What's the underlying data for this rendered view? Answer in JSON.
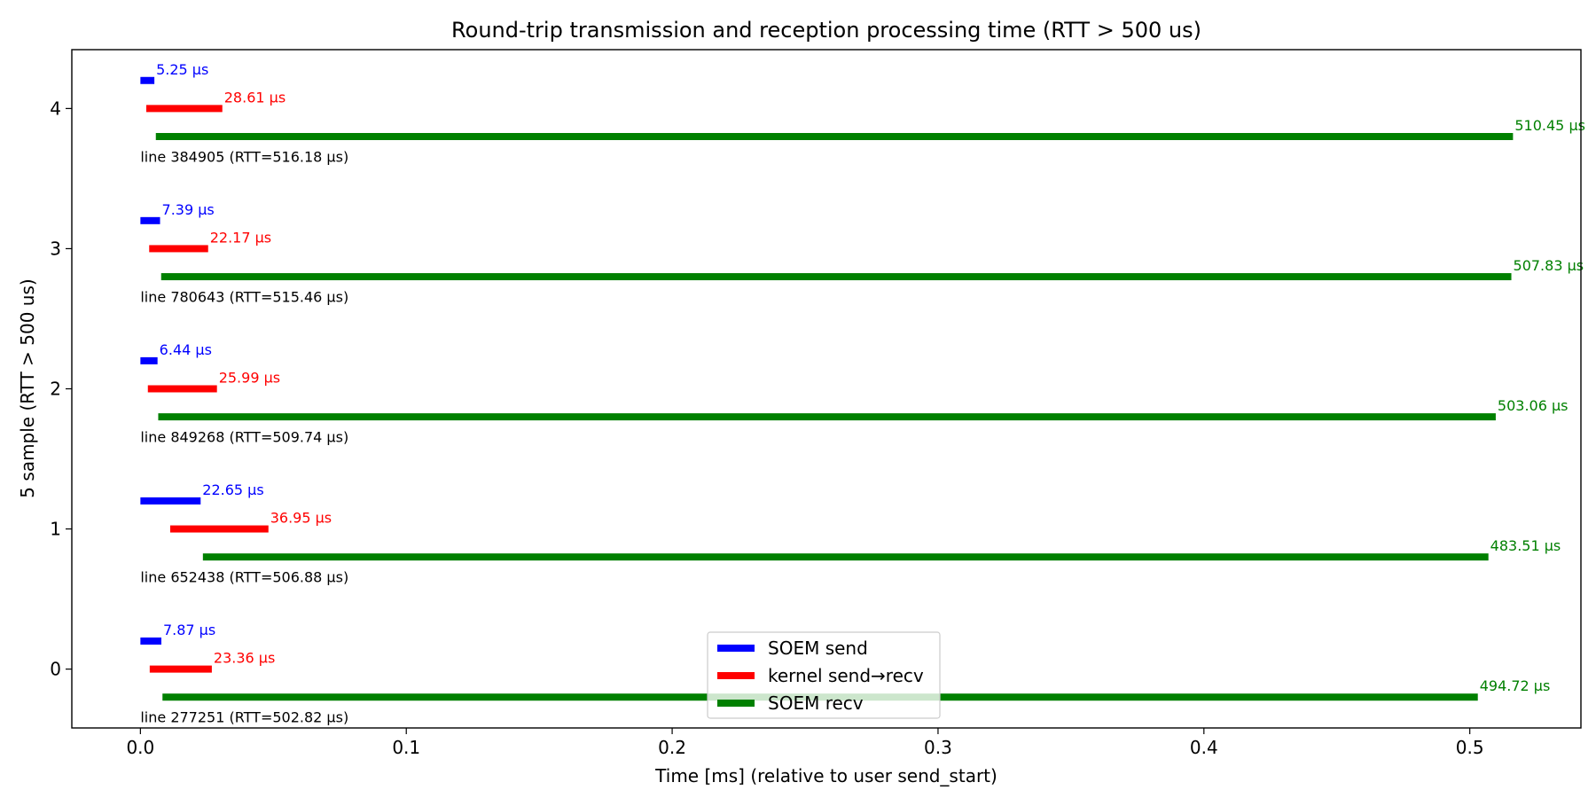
{
  "chart_data": {
    "type": "bar",
    "title": "Round-trip transmission and reception processing time (RTT > 500 us)",
    "xlabel": "Time [ms] (relative to user send_start)",
    "ylabel": "5 sample (RTT > 500 us)",
    "xlim": [
      -0.0258,
      0.5418
    ],
    "ylim": [
      -0.42,
      4.42
    ],
    "xticks": [
      0.0,
      0.1,
      0.2,
      0.3,
      0.4,
      0.5
    ],
    "xtick_labels": [
      "0.0",
      "0.1",
      "0.2",
      "0.3",
      "0.4",
      "0.5"
    ],
    "yticks": [
      0,
      1,
      2,
      3,
      4
    ],
    "ytick_labels": [
      "0",
      "1",
      "2",
      "3",
      "4"
    ],
    "grid": false,
    "legend_position": "bottom-center",
    "series": [
      {
        "name": "SOEM send",
        "color": "#0000ff",
        "y_offset": 0.2
      },
      {
        "name": "kernel send→recv",
        "color": "#ff0000",
        "y_offset": 0.0
      },
      {
        "name": "SOEM recv",
        "color": "#008000",
        "y_offset": -0.2
      }
    ],
    "samples": [
      {
        "y": 0,
        "label": "line 277251 (RTT=502.82 µs)",
        "segments": [
          {
            "start": 0.0,
            "end": 0.00787,
            "text": "7.87 µs"
          },
          {
            "start": 0.0035,
            "end": 0.02686,
            "text": "23.36 µs"
          },
          {
            "start": 0.0083,
            "end": 0.50302,
            "text": "494.72 µs"
          }
        ]
      },
      {
        "y": 1,
        "label": "line 652438 (RTT=506.88 µs)",
        "segments": [
          {
            "start": 0.0,
            "end": 0.02265,
            "text": "22.65 µs"
          },
          {
            "start": 0.0112,
            "end": 0.04815,
            "text": "36.95 µs"
          },
          {
            "start": 0.0235,
            "end": 0.50701,
            "text": "483.51 µs"
          }
        ]
      },
      {
        "y": 2,
        "label": "line 849268 (RTT=509.74 µs)",
        "segments": [
          {
            "start": 0.0,
            "end": 0.00644,
            "text": "6.44 µs"
          },
          {
            "start": 0.0028,
            "end": 0.02879,
            "text": "25.99 µs"
          },
          {
            "start": 0.0067,
            "end": 0.50976,
            "text": "503.06 µs"
          }
        ]
      },
      {
        "y": 3,
        "label": "line 780643 (RTT=515.46 µs)",
        "segments": [
          {
            "start": 0.0,
            "end": 0.00739,
            "text": "7.39 µs"
          },
          {
            "start": 0.0033,
            "end": 0.02547,
            "text": "22.17 µs"
          },
          {
            "start": 0.0078,
            "end": 0.51563,
            "text": "507.83 µs"
          }
        ]
      },
      {
        "y": 4,
        "label": "line 384905 (RTT=516.18 µs)",
        "segments": [
          {
            "start": 0.0,
            "end": 0.00525,
            "text": "5.25 µs"
          },
          {
            "start": 0.0022,
            "end": 0.03081,
            "text": "28.61 µs"
          },
          {
            "start": 0.0058,
            "end": 0.51625,
            "text": "510.45 µs"
          }
        ]
      }
    ]
  }
}
